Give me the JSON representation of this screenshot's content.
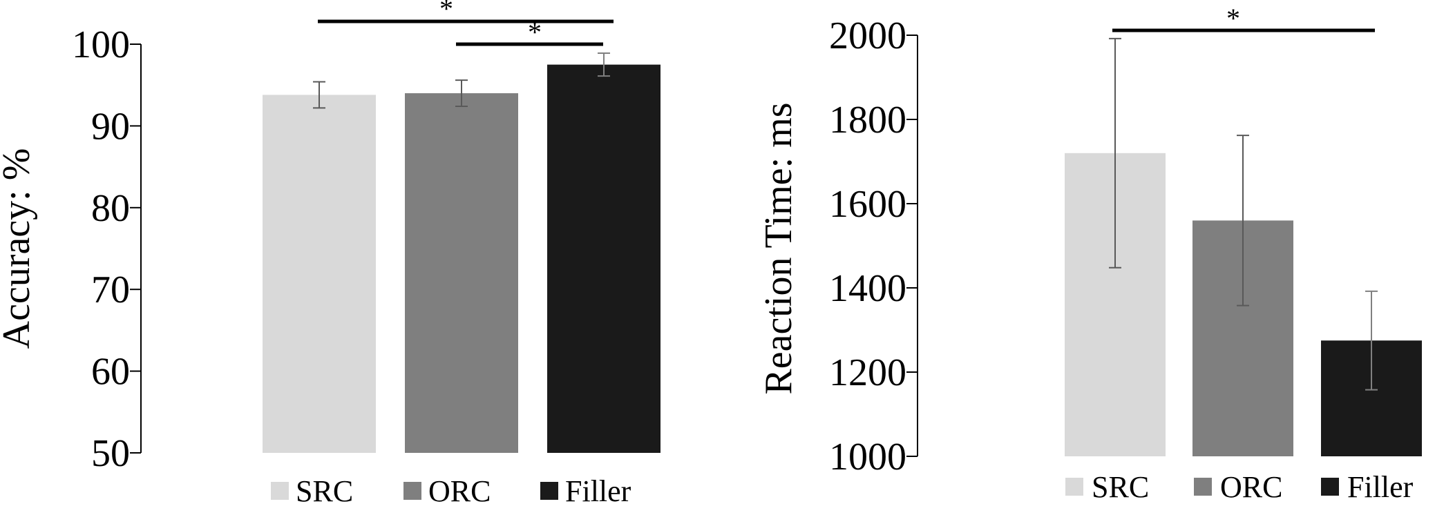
{
  "chart_data": [
    {
      "type": "bar",
      "categories": [
        "SRC",
        "ORC",
        "Filler"
      ],
      "values": [
        93.8,
        94.0,
        97.5
      ],
      "error": [
        1.6,
        1.6,
        1.4
      ],
      "ylabel": "Accuracy: %",
      "ylim": [
        50,
        100
      ],
      "yticks": [
        50,
        60,
        70,
        80,
        90,
        100
      ],
      "colors": [
        "#d9d9d9",
        "#7f7f7f",
        "#1a1a1a"
      ],
      "legend": {
        "position": "bottom",
        "entries": [
          "SRC",
          "ORC",
          "Filler"
        ]
      },
      "grid": false,
      "significance": [
        {
          "from": "SRC",
          "to": "Filler",
          "label": "*"
        },
        {
          "from": "ORC",
          "to": "Filler",
          "label": "*"
        }
      ]
    },
    {
      "type": "bar",
      "categories": [
        "SRC",
        "ORC",
        "Filler"
      ],
      "values": [
        1720,
        1560,
        1275
      ],
      "error": [
        272,
        202,
        117
      ],
      "ylabel": "Reaction Time: ms",
      "ylim": [
        1000,
        2000
      ],
      "yticks": [
        1000,
        1200,
        1400,
        1600,
        1800,
        2000
      ],
      "colors": [
        "#d9d9d9",
        "#7f7f7f",
        "#1a1a1a"
      ],
      "legend": {
        "position": "bottom",
        "entries": [
          "SRC",
          "ORC",
          "Filler"
        ]
      },
      "grid": false,
      "significance": [
        {
          "from": "SRC",
          "to": "Filler",
          "label": "*"
        }
      ]
    }
  ]
}
